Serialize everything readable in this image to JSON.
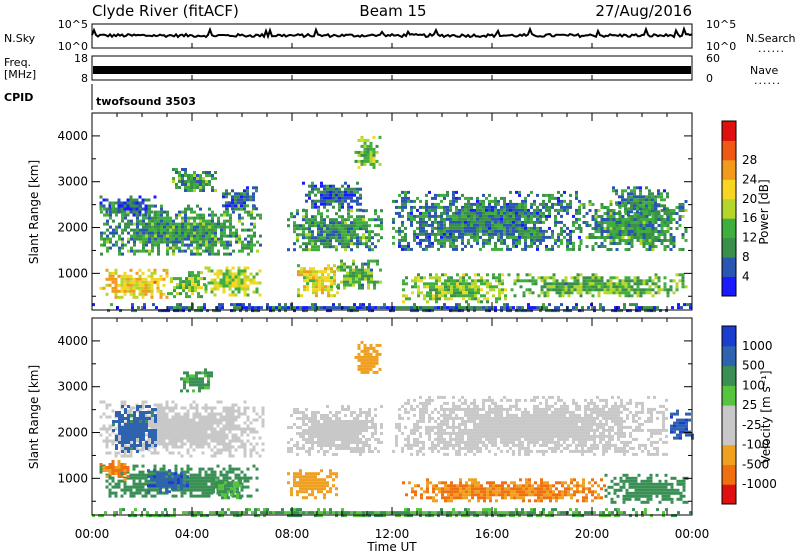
{
  "header": {
    "station": "Clyde River (fitACF)",
    "beam": "Beam 15",
    "date": "27/Aug/2016"
  },
  "top_panels": {
    "nsky_label": "N.Sky",
    "nsky_ticks": [
      "10^5",
      "10^0"
    ],
    "nsearch_label": "N.Search",
    "nsearch_ticks": [
      "10^5",
      "10^0"
    ],
    "freq_label_line1": "Freq.",
    "freq_label_line2": "[MHz]",
    "freq_ticks": [
      "18",
      "8"
    ],
    "nave_label": "Nave",
    "nave_ticks": [
      "60",
      "0"
    ],
    "cpid_label": "CPID",
    "cpid_value": "twofsound 3503",
    "dots": "......"
  },
  "x_axis": {
    "label": "Time UT",
    "ticks": [
      "00:00",
      "04:00",
      "08:00",
      "12:00",
      "16:00",
      "20:00",
      "00:00"
    ],
    "range_hours": [
      0,
      24
    ]
  },
  "chart_data": [
    {
      "type": "heatmap",
      "name": "Power",
      "xlabel": "Time UT",
      "ylabel": "Slant Range [km]",
      "ylim": [
        200,
        4500
      ],
      "yticks": [
        "1000",
        "2000",
        "3000",
        "4000"
      ],
      "colorbar_label": "Power [dB]",
      "colorbar_ticks": [
        "4",
        "8",
        "12",
        "16",
        "20",
        "24",
        "28"
      ],
      "colorbar_colors": [
        "#1a1aff",
        "#2a55b0",
        "#3a8f4a",
        "#3fae3c",
        "#b4d62a",
        "#f6d622",
        "#f29a1c",
        "#ee5a14",
        "#e01010"
      ],
      "colorbar_range": [
        0,
        32
      ],
      "blobs": [
        {
          "t": [
            0.3,
            3.0
          ],
          "r": [
            500,
            1100
          ],
          "v": 20
        },
        {
          "t": [
            3.0,
            4.5
          ],
          "r": [
            500,
            1050
          ],
          "v": 14
        },
        {
          "t": [
            4.5,
            6.7
          ],
          "r": [
            550,
            1150
          ],
          "v": 16
        },
        {
          "t": [
            0.2,
            6.8
          ],
          "r": [
            1400,
            2500
          ],
          "v": 10
        },
        {
          "t": [
            0.3,
            2.5
          ],
          "r": [
            2300,
            2700
          ],
          "v": 6
        },
        {
          "t": [
            3.2,
            5.0
          ],
          "r": [
            2800,
            3300
          ],
          "v": 10
        },
        {
          "t": [
            5.2,
            6.6
          ],
          "r": [
            2400,
            2900
          ],
          "v": 6
        },
        {
          "t": [
            8.2,
            9.8
          ],
          "r": [
            500,
            1200
          ],
          "v": 18
        },
        {
          "t": [
            9.8,
            11.6
          ],
          "r": [
            700,
            1300
          ],
          "v": 12
        },
        {
          "t": [
            7.8,
            11.6
          ],
          "r": [
            1500,
            2400
          ],
          "v": 10
        },
        {
          "t": [
            8.4,
            10.8
          ],
          "r": [
            2400,
            3000
          ],
          "v": 6
        },
        {
          "t": [
            10.5,
            11.5
          ],
          "r": [
            3300,
            4000
          ],
          "v": 14
        },
        {
          "t": [
            12.4,
            16.5
          ],
          "r": [
            400,
            1000
          ],
          "v": 14
        },
        {
          "t": [
            16.5,
            23.8
          ],
          "r": [
            500,
            1000
          ],
          "v": 12
        },
        {
          "t": [
            12.0,
            19.5
          ],
          "r": [
            1500,
            2800
          ],
          "v": 8
        },
        {
          "t": [
            19.5,
            23.8
          ],
          "r": [
            1500,
            2600
          ],
          "v": 10
        },
        {
          "t": [
            20.8,
            23.0
          ],
          "r": [
            2300,
            2900
          ],
          "v": 8
        },
        {
          "t": [
            0.0,
            24.0
          ],
          "r": [
            200,
            350
          ],
          "v": 6
        }
      ]
    },
    {
      "type": "heatmap",
      "name": "Velocity",
      "xlabel": "Time UT",
      "ylabel": "Slant Range [km]",
      "ylim": [
        200,
        4500
      ],
      "yticks": [
        "1000",
        "2000",
        "3000",
        "4000"
      ],
      "colorbar_label": "Velocity [m s⁻¹]",
      "colorbar_ticks": [
        "1000",
        "500",
        "100",
        "25",
        "-25",
        "-100",
        "-500",
        "-1000"
      ],
      "colorbar_colors": [
        "#1a3ccf",
        "#2f63b0",
        "#3a8f55",
        "#56c43e",
        "#c8c8c8",
        "#c8c8c8",
        "#f0a020",
        "#f07010",
        "#e01010"
      ],
      "blobs": [
        {
          "t": [
            0.3,
            6.6
          ],
          "r": [
            600,
            1300
          ],
          "v": 150
        },
        {
          "t": [
            2.2,
            3.8
          ],
          "r": [
            700,
            1200
          ],
          "v": 600
        },
        {
          "t": [
            0.3,
            1.4
          ],
          "r": [
            1000,
            1400
          ],
          "v": -300
        },
        {
          "t": [
            0.3,
            6.8
          ],
          "r": [
            1500,
            2700
          ],
          "v": 0
        },
        {
          "t": [
            0.8,
            2.6
          ],
          "r": [
            1600,
            2600
          ],
          "v": 500
        },
        {
          "t": [
            3.4,
            4.8
          ],
          "r": [
            2900,
            3400
          ],
          "v": 80
        },
        {
          "t": [
            4.8,
            6.0
          ],
          "r": [
            600,
            1000
          ],
          "v": 60
        },
        {
          "t": [
            7.8,
            9.8
          ],
          "r": [
            600,
            1200
          ],
          "v": -200
        },
        {
          "t": [
            7.8,
            11.6
          ],
          "r": [
            1500,
            2600
          ],
          "v": 0
        },
        {
          "t": [
            10.5,
            11.5
          ],
          "r": [
            3300,
            4000
          ],
          "v": -150
        },
        {
          "t": [
            12.4,
            20.5
          ],
          "r": [
            500,
            1000
          ],
          "v": -300
        },
        {
          "t": [
            20.5,
            23.8
          ],
          "r": [
            500,
            1100
          ],
          "v": 150
        },
        {
          "t": [
            12.0,
            23.0
          ],
          "r": [
            1500,
            2800
          ],
          "v": 0
        },
        {
          "t": [
            23.0,
            24.0
          ],
          "r": [
            1900,
            2500
          ],
          "v": 600
        },
        {
          "t": [
            0.0,
            24.0
          ],
          "r": [
            200,
            350
          ],
          "v": 60
        }
      ]
    }
  ]
}
